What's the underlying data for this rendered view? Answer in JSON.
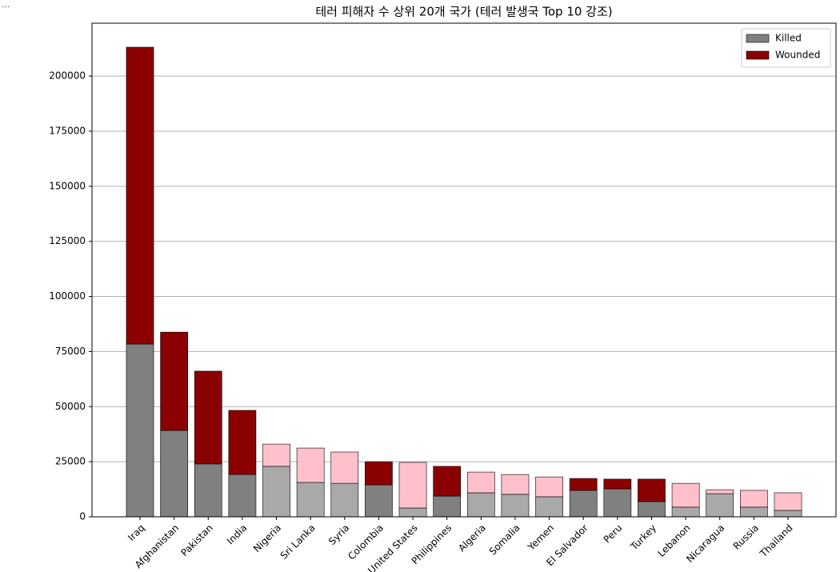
{
  "corner_text": "...",
  "chart_data": {
    "type": "stacked-bar",
    "title": "테러 피해자 수 상위 20개 국가 (테러 발생국 Top 10 강조)",
    "categories": [
      "Iraq",
      "Afghanistan",
      "Pakistan",
      "India",
      "Nigeria",
      "Sri Lanka",
      "Syria",
      "Colombia",
      "United States",
      "Philippines",
      "Algeria",
      "Somalia",
      "Yemen",
      "El Salvador",
      "Peru",
      "Turkey",
      "Lebanon",
      "Nicaragua",
      "Russia",
      "Thailand"
    ],
    "series": [
      {
        "name": "Killed",
        "color": "#808080",
        "values": [
          78400,
          39200,
          24000,
          19200,
          22900,
          15600,
          15200,
          14500,
          4000,
          9400,
          10900,
          10200,
          9100,
          12000,
          12700,
          6900,
          4400,
          10500,
          4400,
          2900
        ],
        "colors": [
          "#808080",
          "#808080",
          "#808080",
          "#808080",
          "#a9a9a9",
          "#a9a9a9",
          "#a9a9a9",
          "#808080",
          "#a9a9a9",
          "#808080",
          "#a9a9a9",
          "#a9a9a9",
          "#a9a9a9",
          "#808080",
          "#808080",
          "#808080",
          "#a9a9a9",
          "#a9a9a9",
          "#a9a9a9",
          "#a9a9a9"
        ]
      },
      {
        "name": "Wounded",
        "color": "#8b0000",
        "values": [
          134700,
          44600,
          42100,
          29100,
          10100,
          15600,
          14200,
          10500,
          20700,
          13500,
          9400,
          9000,
          9000,
          5400,
          4400,
          10200,
          10800,
          1800,
          7600,
          8000
        ],
        "colors": [
          "#8b0000",
          "#8b0000",
          "#8b0000",
          "#8b0000",
          "#ffc0cb",
          "#ffc0cb",
          "#ffc0cb",
          "#8b0000",
          "#ffc0cb",
          "#8b0000",
          "#ffc0cb",
          "#ffc0cb",
          "#ffc0cb",
          "#8b0000",
          "#8b0000",
          "#8b0000",
          "#ffc0cb",
          "#ffc0cb",
          "#ffc0cb",
          "#ffc0cb"
        ]
      }
    ],
    "ylim": [
      0,
      224000
    ],
    "yticks": [
      0,
      25000,
      50000,
      75000,
      100000,
      125000,
      150000,
      175000,
      200000
    ],
    "grid": true,
    "legend": "upper right"
  }
}
